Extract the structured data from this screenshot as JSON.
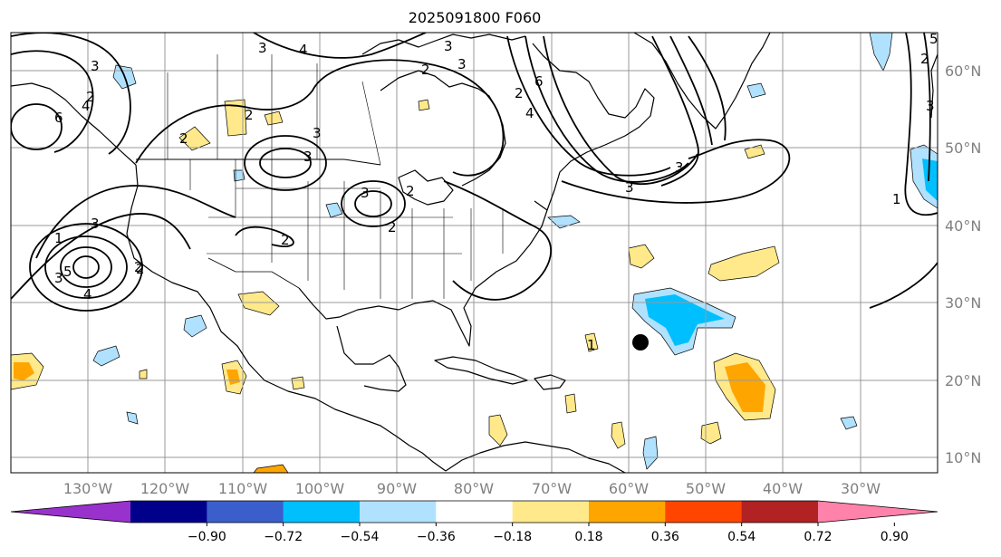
{
  "title": "2025091800 F060",
  "map": {
    "region": "North Atlantic / North America",
    "lon_labels": [
      "130°W",
      "120°W",
      "110°W",
      "100°W",
      "90°W",
      "80°W",
      "70°W",
      "60°W",
      "50°W",
      "40°W",
      "30°W"
    ],
    "lat_labels": [
      "60°N",
      "50°N",
      "40°N",
      "30°N",
      "20°N",
      "10°N"
    ],
    "contour_labels": [
      "3",
      "4",
      "3",
      "2",
      "2",
      "3",
      "6",
      "4",
      "3",
      "2",
      "3",
      "2",
      "2",
      "4",
      "3",
      "2",
      "3",
      "2",
      "1",
      "3",
      "5",
      "6",
      "4",
      "2",
      "3",
      "3",
      "2",
      "5",
      "1",
      "1",
      "2",
      "3",
      "3",
      "2"
    ],
    "storm_marker": "black-dot"
  },
  "colorbar": {
    "ticks": [
      "−0.90",
      "−0.72",
      "−0.54",
      "−0.36",
      "−0.18",
      "0.18",
      "0.36",
      "0.54",
      "0.72",
      "0.90"
    ],
    "colors": [
      "#9932cc",
      "#00008b",
      "#3a5fcd",
      "#00bfff",
      "#b0e2ff",
      "#ffffff",
      "#ffe98a",
      "#ffa500",
      "#ff4500",
      "#b22222",
      "#ff82ab"
    ]
  },
  "colors": {
    "frame": "#000000",
    "grid": "#999999",
    "axis_text": "#808080"
  }
}
